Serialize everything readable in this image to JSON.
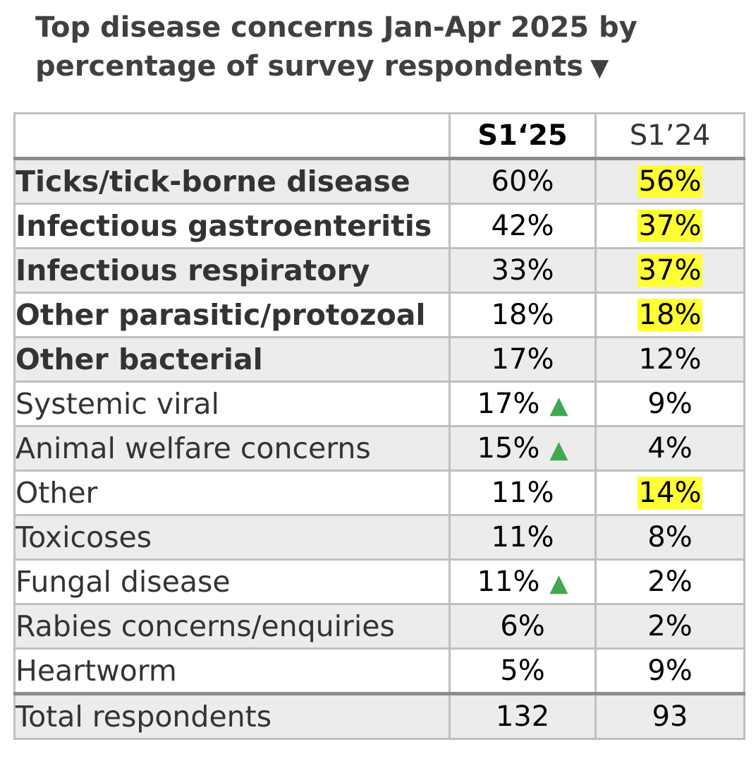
{
  "title": "Top disease concerns Jan-Apr 2025 by percentage of survey respondents",
  "title_marker_icon": "down-triangle-icon",
  "colors": {
    "highlight": "#ffff33",
    "up_arrow": "#3fa94f",
    "row_shade": "#ececec",
    "border": "#bfbfbf"
  },
  "columns": [
    "",
    "S1‘25",
    "S1’24"
  ],
  "rows": [
    {
      "label": "Ticks/tick-borne disease",
      "s125": "60%",
      "s124": "56%"
    },
    {
      "label": "Infectious gastroenteritis",
      "s125": "42%",
      "s124": "37%"
    },
    {
      "label": "Infectious respiratory",
      "s125": "33%",
      "s124": "37%"
    },
    {
      "label": "Other parasitic/protozoal",
      "s125": "18%",
      "s124": "18%"
    },
    {
      "label": "Other bacterial",
      "s125": "17%",
      "s124": "12%"
    },
    {
      "label": "Systemic viral",
      "s125": "17%",
      "s124": "9%"
    },
    {
      "label": "Animal welfare concerns",
      "s125": "15%",
      "s124": "4%"
    },
    {
      "label": "Other",
      "s125": "11%",
      "s124": "14%"
    },
    {
      "label": "Toxicoses",
      "s125": "11%",
      "s124": "8%"
    },
    {
      "label": "Fungal disease",
      "s125": "11%",
      "s124": "2%"
    },
    {
      "label": "Rabies concerns/enquiries",
      "s125": "6%",
      "s124": "2%"
    },
    {
      "label": "Heartworm",
      "s125": "5%",
      "s124": "9%"
    }
  ],
  "total": {
    "label": "Total respondents",
    "s125": "132",
    "s124": "93"
  }
}
